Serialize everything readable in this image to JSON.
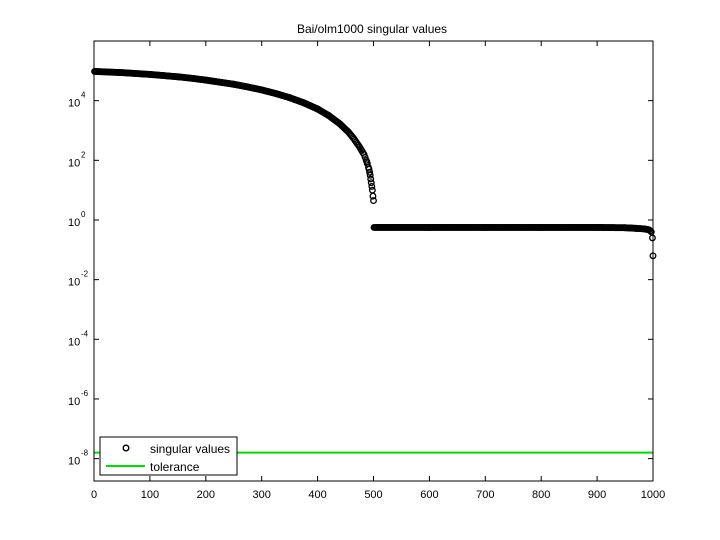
{
  "chart_data": {
    "type": "scatter",
    "title": "Bai/olm1000 singular values",
    "xlabel": "",
    "ylabel": "",
    "xlim": [
      0,
      1000
    ],
    "ylim_log10": [
      -8.75,
      6.0
    ],
    "y_scale": "log",
    "grid": false,
    "legend_position": "bottom-left",
    "x_ticks": [
      {
        "value": 0,
        "label": "0"
      },
      {
        "value": 100,
        "label": "100"
      },
      {
        "value": 200,
        "label": "200"
      },
      {
        "value": 300,
        "label": "300"
      },
      {
        "value": 400,
        "label": "400"
      },
      {
        "value": 500,
        "label": "500"
      },
      {
        "value": 600,
        "label": "600"
      },
      {
        "value": 700,
        "label": "700"
      },
      {
        "value": 800,
        "label": "800"
      },
      {
        "value": 900,
        "label": "900"
      },
      {
        "value": 1000,
        "label": "1000"
      }
    ],
    "y_ticks": [
      {
        "exp": 4,
        "base": "10",
        "sup": "4"
      },
      {
        "exp": 2,
        "base": "10",
        "sup": "2"
      },
      {
        "exp": 0,
        "base": "10",
        "sup": "0"
      },
      {
        "exp": -2,
        "base": "10",
        "sup": "-2"
      },
      {
        "exp": -4,
        "base": "10",
        "sup": "-4"
      },
      {
        "exp": -6,
        "base": "10",
        "sup": "-6"
      },
      {
        "exp": -8,
        "base": "10",
        "sup": "-8"
      }
    ],
    "series": [
      {
        "name": "singular values",
        "marker": "circle",
        "color": "#000000",
        "points_log10": [
          [
            1,
            4.98
          ],
          [
            25,
            4.96
          ],
          [
            50,
            4.94
          ],
          [
            75,
            4.91
          ],
          [
            100,
            4.88
          ],
          [
            125,
            4.84
          ],
          [
            150,
            4.8
          ],
          [
            175,
            4.75
          ],
          [
            200,
            4.69
          ],
          [
            225,
            4.62
          ],
          [
            250,
            4.55
          ],
          [
            275,
            4.46
          ],
          [
            300,
            4.36
          ],
          [
            325,
            4.24
          ],
          [
            350,
            4.1
          ],
          [
            375,
            3.93
          ],
          [
            400,
            3.72
          ],
          [
            420,
            3.5
          ],
          [
            440,
            3.22
          ],
          [
            455,
            2.95
          ],
          [
            465,
            2.72
          ],
          [
            475,
            2.45
          ],
          [
            483,
            2.2
          ],
          [
            488,
            1.95
          ],
          [
            492,
            1.7
          ],
          [
            494,
            1.5
          ],
          [
            496,
            1.25
          ],
          [
            498,
            1.0
          ],
          [
            499,
            0.8
          ],
          [
            500,
            0.65
          ],
          [
            501,
            -0.25
          ],
          [
            600,
            -0.25
          ],
          [
            700,
            -0.25
          ],
          [
            800,
            -0.25
          ],
          [
            900,
            -0.25
          ],
          [
            950,
            -0.26
          ],
          [
            970,
            -0.28
          ],
          [
            985,
            -0.3
          ],
          [
            993,
            -0.33
          ],
          [
            997,
            -0.4
          ],
          [
            999,
            -0.6
          ],
          [
            1000,
            -1.2
          ]
        ]
      },
      {
        "name": "tolerance",
        "type": "line",
        "color": "#00dd00",
        "y_log10": -7.8
      }
    ]
  }
}
